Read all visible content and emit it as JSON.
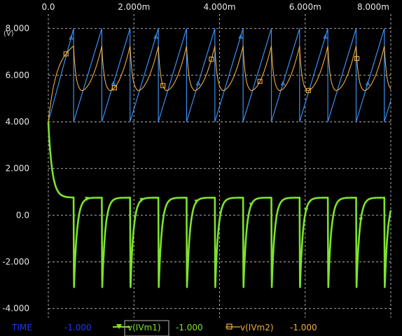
{
  "colors": {
    "background": "#000000",
    "grid": "#bdbdbd",
    "tick_text": "#e8e8e8",
    "time_trace": "#1b3df0",
    "vm1": "#7ee22e",
    "vm2": "#f0ad3e",
    "blue_sawtooth": "#3b8ff0",
    "legend_box": "#9a9a9a"
  },
  "chart_data": {
    "type": "line",
    "title": "",
    "xlabel": "",
    "ylabel": "(V)",
    "xlim": [
      0,
      0.008
    ],
    "ylim": [
      -4.4,
      8.5
    ],
    "x_ticks": [
      {
        "value": 0,
        "label": "0.0"
      },
      {
        "value": 0.002,
        "label": "2.000m"
      },
      {
        "value": 0.004,
        "label": "4.000m"
      },
      {
        "value": 0.006,
        "label": "6.000m"
      },
      {
        "value": 0.008,
        "label": "8.000m"
      }
    ],
    "y_ticks": [
      {
        "value": 8,
        "label": "8.000"
      },
      {
        "value": 6,
        "label": "6.000"
      },
      {
        "value": 4,
        "label": "4.000"
      },
      {
        "value": 2,
        "label": "2.000"
      },
      {
        "value": 0,
        "label": "0.0"
      },
      {
        "value": -2,
        "label": "-2.000"
      },
      {
        "value": -4,
        "label": "-4.000"
      }
    ],
    "grid": true,
    "legend_position": "bottom",
    "legend": [
      {
        "name": "TIME",
        "value": "-1.000",
        "color": "#1b3df0",
        "marker": "none",
        "selected": false
      },
      {
        "name": "v(IVm1)",
        "value": "-1.000",
        "color": "#7ee22e",
        "marker": "triangle",
        "selected": true
      },
      {
        "name": "v(IVm2)",
        "value": "-1.000",
        "color": "#f0ad3e",
        "marker": "square",
        "selected": false
      }
    ],
    "series": [
      {
        "color": "#3b8ff0",
        "shape": "sawtooth",
        "period": 0.00066,
        "first_reset": 0.00059,
        "min": 4.0,
        "max": 8.0,
        "startup_from": 4.0
      },
      {
        "name": "v(IVm2)",
        "color": "#f0ad3e",
        "shape": "charge-discharge",
        "period": 0.00066,
        "first_peak": 0.00059,
        "peak": 7.25,
        "trough": 5.3,
        "startup_from": 4.0
      },
      {
        "name": "v(IVm1)",
        "color": "#7ee22e",
        "shape": "negative-spike",
        "period": 0.00066,
        "first_spike": 0.00059,
        "initial": 4.0,
        "plateau": 0.75,
        "spike_min": -3.2
      }
    ]
  }
}
